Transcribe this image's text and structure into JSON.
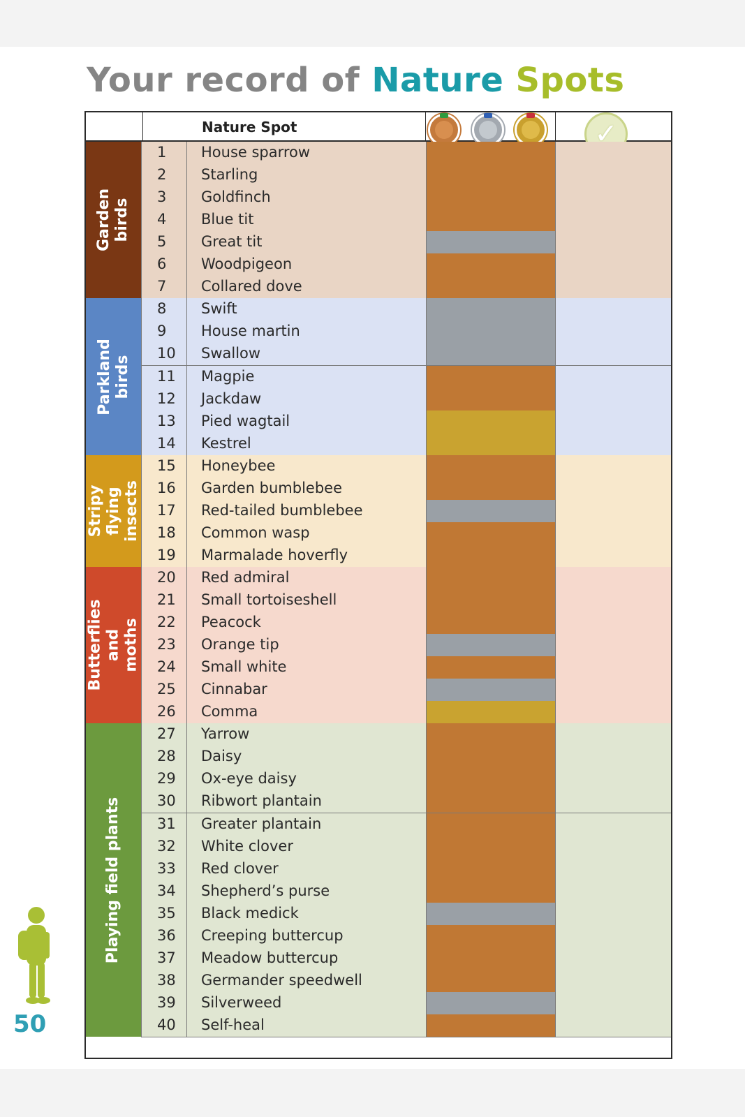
{
  "title": {
    "part1": "Your record of ",
    "part2": "Nature ",
    "part3": "Spots"
  },
  "header": {
    "column_label": "Nature Spot"
  },
  "page_number": "50",
  "colors": {
    "bronze": "#c07834",
    "silver": "#9aa0a6",
    "gold": "#c9a330",
    "title_grey": "#858585",
    "title_teal": "#1a9ba8",
    "title_green": "#a7bd2a"
  },
  "medal_icons": [
    "bronze-medal-icon",
    "silver-medal-icon",
    "gold-medal-icon"
  ],
  "completed_icon": "check-badge-icon",
  "groups": [
    {
      "label": "Garden birds",
      "color": "#7a3714",
      "row_bg": "#e9d5c5",
      "first": 1,
      "last": 7
    },
    {
      "label": "Parkland birds",
      "color": "#5b86c5",
      "row_bg": "#dbe2f4",
      "first": 8,
      "last": 14
    },
    {
      "label": "Stripy flying insects",
      "color": "#d39a1c",
      "row_bg": "#f8e8cc",
      "first": 15,
      "last": 19
    },
    {
      "label": "Butterflies and moths",
      "color": "#cf4a2b",
      "row_bg": "#f6d9cd",
      "first": 20,
      "last": 26
    },
    {
      "label": "Playing field plants",
      "color": "#6c9a3e",
      "row_bg": "#e0e6d2",
      "first": 27,
      "last": 40
    }
  ],
  "spots": [
    {
      "num": "1",
      "name": "House sparrow",
      "medal": "bronze"
    },
    {
      "num": "2",
      "name": "Starling",
      "medal": "bronze"
    },
    {
      "num": "3",
      "name": "Goldfinch",
      "medal": "bronze"
    },
    {
      "num": "4",
      "name": "Blue tit",
      "medal": "bronze"
    },
    {
      "num": "5",
      "name": "Great tit",
      "medal": "silver"
    },
    {
      "num": "6",
      "name": "Woodpigeon",
      "medal": "bronze"
    },
    {
      "num": "7",
      "name": "Collared dove",
      "medal": "bronze"
    },
    {
      "num": "8",
      "name": "Swift",
      "medal": "silver"
    },
    {
      "num": "9",
      "name": "House martin",
      "medal": "silver"
    },
    {
      "num": "10",
      "name": "Swallow",
      "medal": "silver"
    },
    {
      "num": "11",
      "name": "Magpie",
      "medal": "bronze"
    },
    {
      "num": "12",
      "name": "Jackdaw",
      "medal": "bronze"
    },
    {
      "num": "13",
      "name": "Pied wagtail",
      "medal": "gold"
    },
    {
      "num": "14",
      "name": "Kestrel",
      "medal": "gold"
    },
    {
      "num": "15",
      "name": "Honeybee",
      "medal": "bronze"
    },
    {
      "num": "16",
      "name": "Garden bumblebee",
      "medal": "bronze"
    },
    {
      "num": "17",
      "name": "Red-tailed bumblebee",
      "medal": "silver"
    },
    {
      "num": "18",
      "name": "Common wasp",
      "medal": "bronze"
    },
    {
      "num": "19",
      "name": "Marmalade hoverfly",
      "medal": "bronze"
    },
    {
      "num": "20",
      "name": "Red admiral",
      "medal": "bronze"
    },
    {
      "num": "21",
      "name": "Small tortoiseshell",
      "medal": "bronze"
    },
    {
      "num": "22",
      "name": "Peacock",
      "medal": "bronze"
    },
    {
      "num": "23",
      "name": "Orange tip",
      "medal": "silver"
    },
    {
      "num": "24",
      "name": "Small white",
      "medal": "bronze"
    },
    {
      "num": "25",
      "name": "Cinnabar",
      "medal": "silver"
    },
    {
      "num": "26",
      "name": "Comma",
      "medal": "gold"
    },
    {
      "num": "27",
      "name": "Yarrow",
      "medal": "bronze"
    },
    {
      "num": "28",
      "name": "Daisy",
      "medal": "bronze"
    },
    {
      "num": "29",
      "name": "Ox-eye daisy",
      "medal": "bronze"
    },
    {
      "num": "30",
      "name": "Ribwort plantain",
      "medal": "bronze"
    },
    {
      "num": "31",
      "name": "Greater plantain",
      "medal": "bronze"
    },
    {
      "num": "32",
      "name": "White clover",
      "medal": "bronze"
    },
    {
      "num": "33",
      "name": "Red clover",
      "medal": "bronze"
    },
    {
      "num": "34",
      "name": "Shepherd’s purse",
      "medal": "bronze"
    },
    {
      "num": "35",
      "name": "Black medick",
      "medal": "silver"
    },
    {
      "num": "36",
      "name": "Creeping buttercup",
      "medal": "bronze"
    },
    {
      "num": "37",
      "name": "Meadow buttercup",
      "medal": "bronze"
    },
    {
      "num": "38",
      "name": "Germander speedwell",
      "medal": "bronze"
    },
    {
      "num": "39",
      "name": "Silverweed",
      "medal": "silver"
    },
    {
      "num": "40",
      "name": "Self-heal",
      "medal": "bronze"
    }
  ]
}
